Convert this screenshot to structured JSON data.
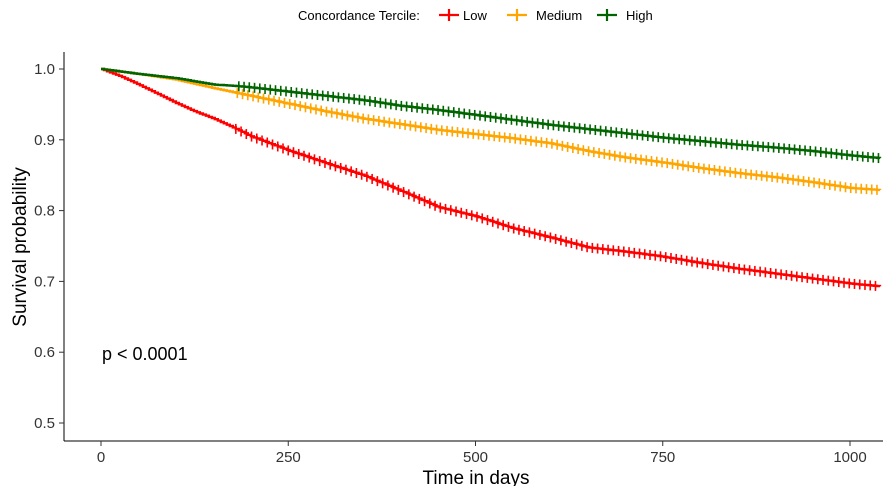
{
  "chart_data": {
    "type": "line",
    "subtype": "kaplan-meier survival curve with censoring marks",
    "title": "",
    "xlabel": "Time in days",
    "ylabel": "Survival probability",
    "xlim": [
      0,
      1040
    ],
    "ylim": [
      0.48,
      1.025
    ],
    "x_ticks": [
      0,
      250,
      500,
      750,
      1000
    ],
    "y_ticks": [
      0.5,
      0.6,
      0.7,
      0.8,
      0.9,
      1.0
    ],
    "x_tick_labels": [
      "0",
      "250",
      "500",
      "750",
      "1000"
    ],
    "y_tick_labels": [
      "0.5",
      "0.6",
      "0.7",
      "0.8",
      "0.9",
      "1.0"
    ],
    "grid": false,
    "legend": {
      "title": "Concordance Tercile:",
      "position": "top",
      "entries": [
        "Low",
        "Medium",
        "High"
      ]
    },
    "annotation": "p < 0.0001",
    "series": [
      {
        "name": "Low",
        "color": "#ff0000",
        "x": [
          0,
          25,
          50,
          75,
          100,
          125,
          150,
          175,
          200,
          250,
          300,
          350,
          400,
          450,
          500,
          550,
          600,
          650,
          700,
          750,
          800,
          850,
          900,
          950,
          1000,
          1040
        ],
        "y": [
          1.0,
          0.99,
          0.978,
          0.965,
          0.952,
          0.94,
          0.93,
          0.918,
          0.905,
          0.885,
          0.867,
          0.85,
          0.828,
          0.805,
          0.792,
          0.775,
          0.762,
          0.748,
          0.742,
          0.735,
          0.726,
          0.718,
          0.711,
          0.704,
          0.697,
          0.693
        ],
        "censor_range": [
          180,
          1040
        ]
      },
      {
        "name": "Medium",
        "color": "#ffa500",
        "x": [
          0,
          50,
          100,
          150,
          200,
          250,
          300,
          350,
          400,
          450,
          500,
          550,
          600,
          650,
          700,
          750,
          800,
          850,
          900,
          950,
          1000,
          1040
        ],
        "y": [
          1.0,
          0.993,
          0.985,
          0.973,
          0.962,
          0.951,
          0.94,
          0.93,
          0.922,
          0.914,
          0.908,
          0.902,
          0.895,
          0.884,
          0.875,
          0.868,
          0.86,
          0.853,
          0.847,
          0.84,
          0.832,
          0.829
        ],
        "censor_range": [
          180,
          1040
        ]
      },
      {
        "name": "High",
        "color": "#006400",
        "x": [
          0,
          50,
          100,
          150,
          180,
          200,
          250,
          300,
          350,
          400,
          450,
          500,
          550,
          600,
          650,
          700,
          750,
          800,
          850,
          900,
          950,
          1000,
          1040
        ],
        "y": [
          1.0,
          0.993,
          0.987,
          0.978,
          0.976,
          0.974,
          0.968,
          0.962,
          0.956,
          0.948,
          0.942,
          0.935,
          0.928,
          0.921,
          0.915,
          0.909,
          0.903,
          0.898,
          0.893,
          0.889,
          0.884,
          0.878,
          0.874
        ],
        "censor_range": [
          180,
          1040
        ]
      }
    ]
  }
}
